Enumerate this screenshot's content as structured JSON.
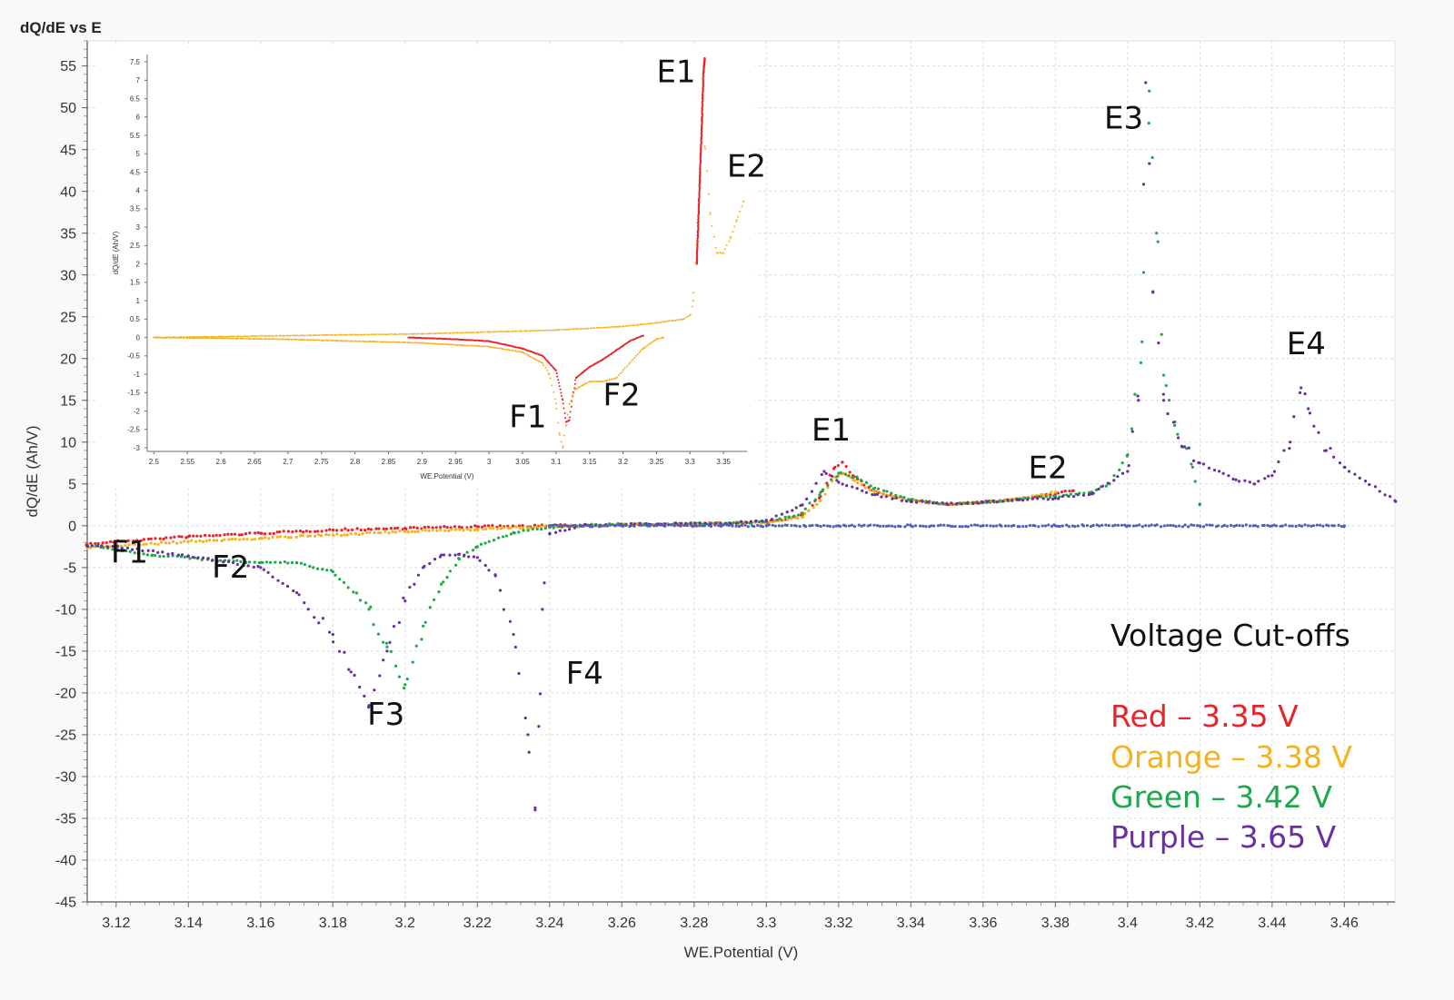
{
  "chart_data": {
    "title": "dQ/dE vs E",
    "type": "scatter",
    "main": {
      "xlabel": "WE.Potential (V)",
      "ylabel": "dQ/dE (Ah/V)",
      "xlim": [
        3.112,
        3.474
      ],
      "ylim": [
        -45,
        58
      ],
      "xticks": [
        "3.12",
        "3.14",
        "3.16",
        "3.18",
        "3.2",
        "3.22",
        "3.24",
        "3.26",
        "3.28",
        "3.3",
        "3.32",
        "3.34",
        "3.36",
        "3.38",
        "3.4",
        "3.42",
        "3.44",
        "3.46"
      ],
      "yticks": [
        "55",
        "50",
        "45",
        "40",
        "35",
        "30",
        "25",
        "20",
        "15",
        "10",
        "5",
        "0",
        "-5",
        "-10",
        "-15",
        "-20",
        "-25",
        "-30",
        "-35",
        "-40",
        "-45"
      ],
      "grid": true,
      "series": [
        {
          "color": "#e8232a",
          "x": [
            3.112,
            3.12,
            3.14,
            3.16,
            3.18,
            3.2,
            3.22,
            3.24,
            3.26,
            3.28,
            3.3,
            3.31,
            3.315,
            3.319,
            3.321,
            3.324,
            3.33,
            3.34,
            3.35,
            3.36,
            3.37,
            3.38,
            3.385
          ],
          "y": [
            -2.2,
            -1.9,
            -1.3,
            -0.9,
            -0.5,
            -0.3,
            -0.1,
            0.0,
            0.1,
            0.2,
            0.4,
            1.2,
            3.5,
            7.0,
            7.6,
            6.0,
            4.0,
            3.0,
            2.6,
            2.8,
            3.2,
            3.8,
            4.2
          ]
        },
        {
          "color": "#f5b21f",
          "x": [
            3.112,
            3.12,
            3.14,
            3.16,
            3.18,
            3.2,
            3.22,
            3.24,
            3.26,
            3.28,
            3.3,
            3.31,
            3.315,
            3.319,
            3.321,
            3.324,
            3.33,
            3.34,
            3.35,
            3.36,
            3.37,
            3.38
          ],
          "y": [
            -2.6,
            -2.4,
            -1.9,
            -1.5,
            -1.1,
            -0.7,
            -0.4,
            -0.1,
            0.1,
            0.2,
            0.4,
            1.0,
            3.0,
            5.8,
            6.2,
            5.5,
            4.0,
            3.0,
            2.6,
            2.8,
            3.2,
            4.0
          ]
        },
        {
          "color": "#1fa84a",
          "x": [
            3.112,
            3.13,
            3.15,
            3.16,
            3.17,
            3.18,
            3.19,
            3.195,
            3.2,
            3.205,
            3.21,
            3.215,
            3.22,
            3.23,
            3.24,
            3.25,
            3.27,
            3.29,
            3.3,
            3.31,
            3.315,
            3.32,
            3.325,
            3.33,
            3.34,
            3.35,
            3.36,
            3.37,
            3.38,
            3.39,
            3.395,
            3.4,
            3.404,
            3.406,
            3.408,
            3.41,
            3.413,
            3.418,
            3.42
          ],
          "y": [
            -2.3,
            -3.5,
            -4.2,
            -4.4,
            -4.4,
            -5.5,
            -10.0,
            -14.5,
            -19.0,
            -12.0,
            -7.0,
            -4.0,
            -2.5,
            -0.8,
            -0.2,
            0.1,
            0.2,
            0.3,
            0.5,
            1.5,
            4.0,
            6.3,
            5.8,
            4.5,
            3.1,
            2.6,
            2.8,
            3.2,
            3.5,
            4.0,
            5.0,
            8.5,
            22.0,
            52.0,
            35.0,
            18.0,
            12.0,
            7.0,
            2.6
          ]
        },
        {
          "color": "#6a2ea0",
          "x": [
            3.112,
            3.12,
            3.14,
            3.16,
            3.17,
            3.18,
            3.185,
            3.19,
            3.195,
            3.2,
            3.205,
            3.21,
            3.215,
            3.22,
            3.225,
            3.23,
            3.234,
            3.236,
            3.237,
            3.238,
            3.24,
            3.25,
            3.27,
            3.29,
            3.3,
            3.31,
            3.316,
            3.32,
            3.33,
            3.34,
            3.35,
            3.36,
            3.37,
            3.38,
            3.39,
            3.4,
            3.403,
            3.405,
            3.407,
            3.41,
            3.415,
            3.42,
            3.43,
            3.435,
            3.44,
            3.445,
            3.448,
            3.45,
            3.455,
            3.46,
            3.474
          ],
          "y": [
            -2.4,
            -2.5,
            -3.6,
            -5.0,
            -8.0,
            -13.0,
            -17.5,
            -21.5,
            -15.0,
            -9.0,
            -5.0,
            -3.5,
            -3.4,
            -3.8,
            -6.0,
            -13.0,
            -25.0,
            -34.0,
            -24.0,
            -10.0,
            -1.0,
            0.1,
            0.2,
            0.3,
            0.6,
            2.5,
            6.5,
            5.2,
            3.7,
            2.9,
            2.6,
            2.8,
            3.1,
            3.3,
            3.8,
            6.5,
            15.0,
            53.0,
            28.0,
            15.0,
            9.5,
            7.5,
            5.5,
            5.0,
            6.0,
            10.0,
            16.5,
            14.0,
            9.0,
            7.0,
            3.0
          ]
        },
        {
          "color": "#5060b8",
          "x": [
            3.24,
            3.26,
            3.28,
            3.3,
            3.32,
            3.34,
            3.36,
            3.38,
            3.4,
            3.42,
            3.44,
            3.46
          ],
          "y": [
            0,
            0,
            0,
            0,
            0,
            0,
            0,
            0,
            0,
            0,
            0,
            0
          ]
        }
      ],
      "annotations": [
        {
          "text": "E1",
          "x": 3.3125,
          "y": 10.2
        },
        {
          "text": "E2",
          "x": 3.3725,
          "y": 5.7
        },
        {
          "text": "E3",
          "x": 3.3935,
          "y": 47.5
        },
        {
          "text": "E4",
          "x": 3.444,
          "y": 20.5
        },
        {
          "text": "F1",
          "x": 3.1185,
          "y": -4.4
        },
        {
          "text": "F2",
          "x": 3.1465,
          "y": -6.2
        },
        {
          "text": "F3",
          "x": 3.1895,
          "y": -23.8
        },
        {
          "text": "F4",
          "x": 3.2445,
          "y": -18.9
        }
      ],
      "legend": {
        "title": "Voltage Cut-offs",
        "entries": [
          {
            "label": "Red – 3.35 V",
            "color": "#e8232a"
          },
          {
            "label": "Orange – 3.38 V",
            "color": "#f5b21f"
          },
          {
            "label": "Green – 3.42 V",
            "color": "#1fa84a"
          },
          {
            "label": "Purple – 3.65 V",
            "color": "#6a2ea0"
          }
        ]
      }
    },
    "inset": {
      "xlabel": "WE.Potential (V)",
      "ylabel": "dQ/dE (Ah/V)",
      "xlim": [
        2.49,
        3.385
      ],
      "ylim": [
        -3.1,
        7.7
      ],
      "xticks": [
        "2.5",
        "2.55",
        "2.6",
        "2.65",
        "2.7",
        "2.75",
        "2.8",
        "2.85",
        "2.9",
        "2.95",
        "3",
        "3.05",
        "3.1",
        "3.15",
        "3.2",
        "3.25",
        "3.3",
        "3.35"
      ],
      "yticks": [
        "7.5",
        "7",
        "6.5",
        "6",
        "5.5",
        "5",
        "4.5",
        "4",
        "3.5",
        "3",
        "2.5",
        "2",
        "1.5",
        "1",
        "0.5",
        "0",
        "-0.5",
        "-1",
        "-1.5",
        "-2",
        "-2.5",
        "-3"
      ],
      "series": [
        {
          "color": "#e8232a",
          "x": [
            2.88,
            2.95,
            3.0,
            3.05,
            3.08,
            3.1,
            3.11,
            3.115,
            3.12,
            3.125,
            3.13,
            3.14,
            3.15,
            3.17,
            3.19,
            3.21,
            3.23
          ],
          "y": [
            0.0,
            -0.05,
            -0.1,
            -0.3,
            -0.5,
            -0.9,
            -1.7,
            -2.3,
            -2.25,
            -1.6,
            -1.1,
            -0.95,
            -0.8,
            -0.6,
            -0.35,
            -0.1,
            0.05
          ]
        },
        {
          "color": "#f5b21f",
          "x": [
            2.5,
            2.6,
            2.7,
            2.8,
            2.9,
            3.0,
            3.05,
            3.08,
            3.09,
            3.1,
            3.105,
            3.11,
            3.115,
            3.12,
            3.13,
            3.14,
            3.15,
            3.17,
            3.19,
            3.21,
            3.23,
            3.25,
            3.26
          ],
          "y": [
            0.0,
            -0.02,
            -0.05,
            -0.1,
            -0.15,
            -0.25,
            -0.4,
            -0.7,
            -1.0,
            -1.8,
            -2.6,
            -3.0,
            -2.4,
            -1.8,
            -1.4,
            -1.3,
            -1.2,
            -1.2,
            -1.1,
            -0.7,
            -0.3,
            -0.05,
            0.0
          ]
        },
        {
          "color": "#f5b21f",
          "x": [
            2.5,
            2.7,
            2.9,
            3.0,
            3.1,
            3.2,
            3.25,
            3.29,
            3.3,
            3.305,
            3.31,
            3.315,
            3.318,
            3.322,
            3.33,
            3.34,
            3.35,
            3.36,
            3.37,
            3.38
          ],
          "y": [
            0.0,
            0.05,
            0.1,
            0.15,
            0.2,
            0.3,
            0.4,
            0.5,
            0.6,
            1.0,
            2.5,
            5.0,
            6.6,
            5.2,
            3.4,
            2.3,
            2.3,
            2.7,
            3.2,
            3.7
          ]
        },
        {
          "color": "#e8232a",
          "x": [
            3.31,
            3.315,
            3.318,
            3.32,
            3.322
          ],
          "y": [
            2.0,
            4.5,
            6.0,
            7.2,
            7.6
          ]
        }
      ],
      "annotations": [
        {
          "text": "E1",
          "x": 3.25,
          "y": 6.95
        },
        {
          "text": "E2",
          "x": 3.355,
          "y": 4.38
        },
        {
          "text": "F1",
          "x": 3.03,
          "y": -2.45
        },
        {
          "text": "F2",
          "x": 3.17,
          "y": -1.85
        }
      ]
    }
  }
}
